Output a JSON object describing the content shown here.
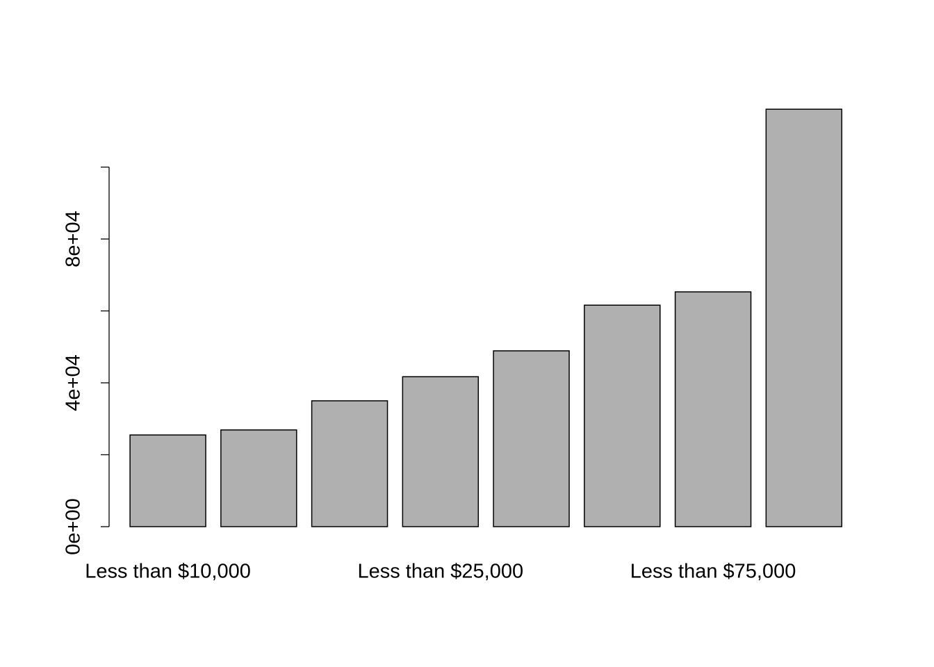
{
  "chart_data": {
    "type": "bar",
    "categories": [
      "Less than $10,000",
      null,
      null,
      "Less than $25,000",
      null,
      null,
      "Less than $75,000",
      null
    ],
    "values": [
      25500,
      26900,
      35000,
      41700,
      48900,
      61600,
      65300,
      116100
    ],
    "color": "#b0b0b0",
    "ylim": [
      0,
      120000
    ],
    "yticks": [
      {
        "value": 0,
        "label": "0e+00"
      },
      20000,
      {
        "value": 40000,
        "label": "4e+04"
      },
      60000,
      {
        "value": 80000,
        "label": "8e+04"
      },
      100000
    ]
  }
}
